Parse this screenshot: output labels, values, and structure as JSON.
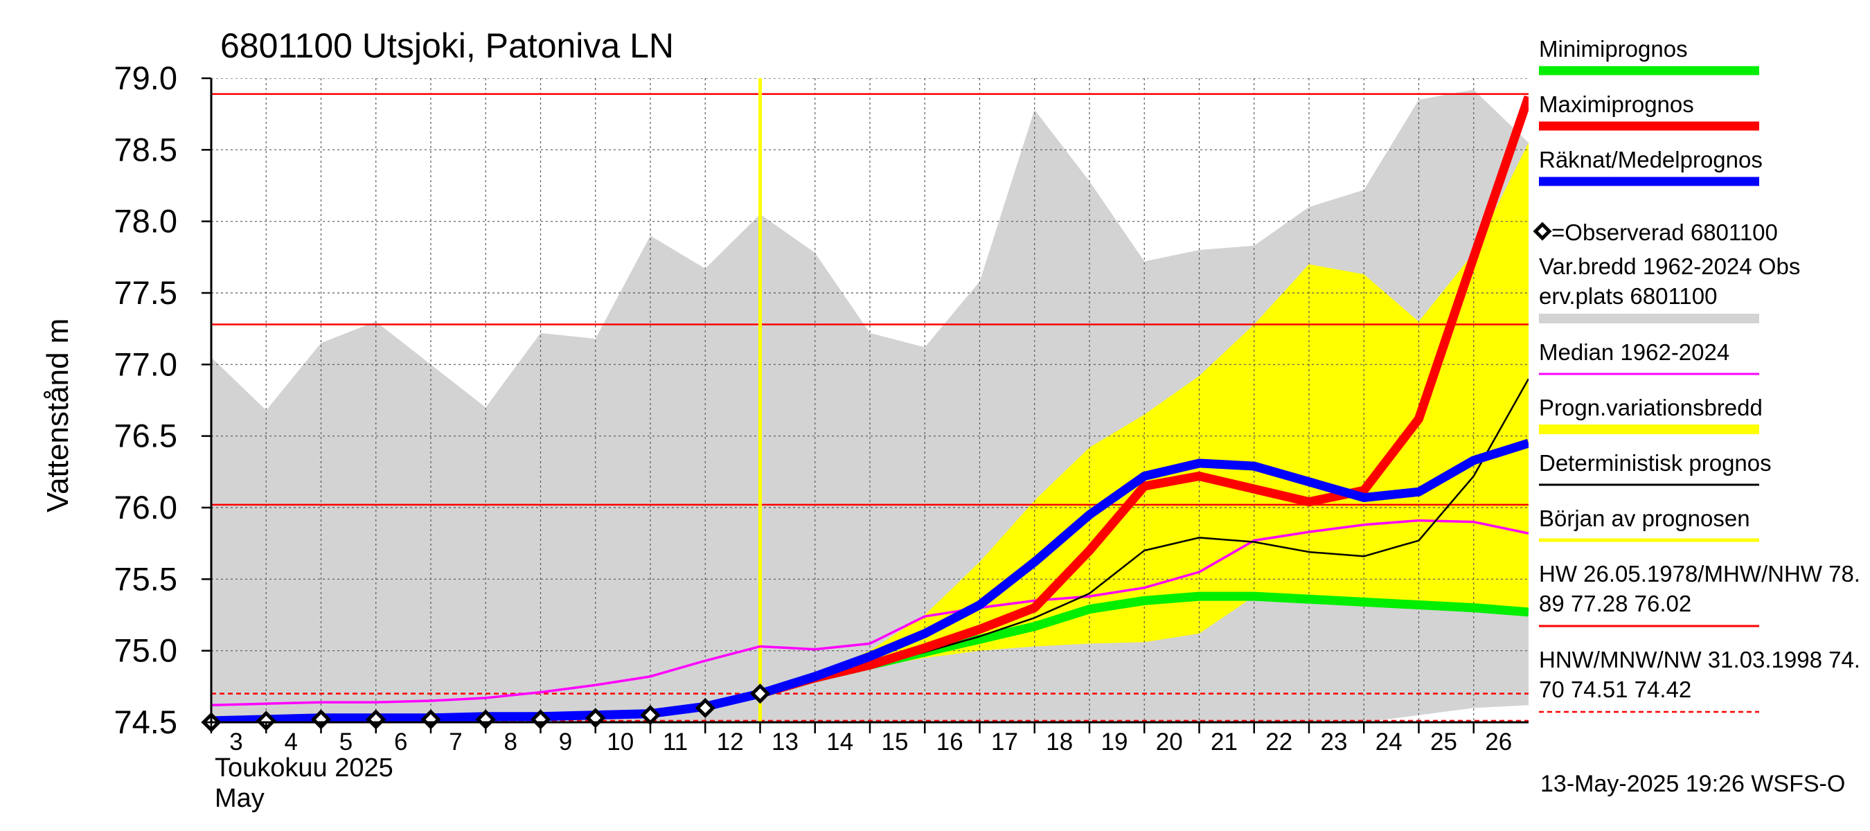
{
  "chart_data": {
    "type": "line",
    "title": "6801100 Utsjoki, Patoniva LN",
    "ylabel": "Vattenstånd m",
    "xlabel_lines": [
      "Toukokuu  2025",
      "May"
    ],
    "ylim": [
      74.5,
      79.0
    ],
    "xlim": [
      3,
      27
    ],
    "yticks": [
      74.5,
      75.0,
      75.5,
      76.0,
      76.5,
      77.0,
      77.5,
      78.0,
      78.5,
      79.0
    ],
    "ytick_labels": [
      "74.5",
      "75.0",
      "75.5",
      "76.0",
      "76.5",
      "77.0",
      "77.5",
      "78.0",
      "78.5",
      "79.0"
    ],
    "xticks": [
      3,
      4,
      5,
      6,
      7,
      8,
      9,
      10,
      11,
      12,
      13,
      14,
      15,
      16,
      17,
      18,
      19,
      20,
      21,
      22,
      23,
      24,
      25,
      26
    ],
    "xtick_labels": [
      "3",
      "4",
      "5",
      "6",
      "7",
      "8",
      "9",
      "10",
      "11",
      "12",
      "13",
      "14",
      "15",
      "16",
      "17",
      "18",
      "19",
      "20",
      "21",
      "22",
      "23",
      "24",
      "25",
      "26"
    ],
    "grid": true,
    "legend_placement": "right",
    "forecast_start_x": 13,
    "reference_lines": [
      {
        "name": "HW",
        "y": 78.89,
        "style": "solid",
        "color": "#ff0000"
      },
      {
        "name": "MHW",
        "y": 77.28,
        "style": "solid",
        "color": "#ff0000"
      },
      {
        "name": "NHW",
        "y": 76.02,
        "style": "solid",
        "color": "#ff0000"
      },
      {
        "name": "HNW",
        "y": 74.7,
        "style": "dashed",
        "color": "#ff0000"
      },
      {
        "name": "MNW",
        "y": 74.51,
        "style": "dashed",
        "color": "#ff0000"
      },
      {
        "name": "NW",
        "y": 74.42,
        "style": "dashed",
        "color": "#ff0000"
      }
    ],
    "variation_band": {
      "x": [
        3,
        4,
        5,
        6,
        7,
        8,
        9,
        10,
        11,
        12,
        13,
        14,
        15,
        16,
        17,
        18,
        19,
        20,
        21,
        22,
        23,
        24,
        25,
        26,
        27
      ],
      "upper": [
        77.05,
        76.68,
        77.15,
        77.3,
        77.0,
        76.7,
        77.22,
        77.18,
        77.9,
        77.67,
        78.05,
        77.78,
        77.22,
        77.12,
        77.58,
        78.78,
        78.28,
        77.72,
        77.8,
        77.83,
        78.1,
        78.22,
        78.85,
        78.92,
        78.55
      ],
      "lower": [
        74.5,
        74.5,
        74.5,
        74.5,
        74.5,
        74.5,
        74.5,
        74.5,
        74.5,
        74.5,
        74.5,
        74.5,
        74.5,
        74.5,
        74.5,
        74.45,
        74.47,
        74.5,
        74.5,
        74.5,
        74.5,
        74.5,
        74.55,
        74.6,
        74.62
      ],
      "color": "#d3d3d3"
    },
    "forecast_band": {
      "x": [
        13,
        14,
        15,
        16,
        17,
        18,
        19,
        20,
        21,
        22,
        23,
        24,
        25,
        26,
        27
      ],
      "upper": [
        74.7,
        74.83,
        75.0,
        75.25,
        75.62,
        76.05,
        76.42,
        76.65,
        76.92,
        77.28,
        77.7,
        77.63,
        77.3,
        77.78,
        78.55
      ],
      "lower": [
        74.7,
        74.82,
        74.88,
        74.95,
        75.0,
        75.03,
        75.05,
        75.06,
        75.12,
        75.38,
        75.38,
        75.33,
        75.32,
        75.3,
        75.3
      ],
      "color": "#ffff00"
    },
    "series": [
      {
        "name": "Minimiprognos",
        "color": "#00ee00",
        "x": [
          13,
          14,
          15,
          16,
          17,
          18,
          19,
          20,
          21,
          22,
          23,
          24,
          25,
          26,
          27
        ],
        "values": [
          74.7,
          74.81,
          74.9,
          74.99,
          75.08,
          75.17,
          75.29,
          75.35,
          75.38,
          75.38,
          75.36,
          75.34,
          75.32,
          75.3,
          75.27
        ]
      },
      {
        "name": "Maximiprognos",
        "color": "#ff0000",
        "x": [
          13,
          14,
          15,
          16,
          17,
          18,
          19,
          20,
          21,
          22,
          23,
          24,
          25,
          26,
          27
        ],
        "values": [
          74.7,
          74.81,
          74.9,
          75.02,
          75.15,
          75.3,
          75.7,
          76.15,
          76.22,
          76.13,
          76.04,
          76.12,
          76.62,
          77.75,
          78.87
        ]
      },
      {
        "name": "Räknat/Medelprognos",
        "color": "#0000ff",
        "x": [
          3,
          4,
          5,
          6,
          7,
          8,
          9,
          10,
          11,
          12,
          13,
          14,
          15,
          16,
          17,
          18,
          19,
          20,
          21,
          22,
          23,
          24,
          25,
          26,
          27
        ],
        "values": [
          74.51,
          74.52,
          74.53,
          74.53,
          74.53,
          74.54,
          74.54,
          74.55,
          74.56,
          74.61,
          74.7,
          74.82,
          74.96,
          75.12,
          75.32,
          75.62,
          75.95,
          76.22,
          76.31,
          76.29,
          76.18,
          76.07,
          76.11,
          76.33,
          76.45
        ]
      },
      {
        "name": "Median 1962-2024",
        "color": "#ff00ff",
        "x": [
          3,
          4,
          5,
          6,
          7,
          8,
          9,
          10,
          11,
          12,
          13,
          14,
          15,
          16,
          17,
          18,
          19,
          20,
          21,
          22,
          23,
          24,
          25,
          26,
          27
        ],
        "values": [
          74.62,
          74.63,
          74.64,
          74.64,
          74.65,
          74.67,
          74.71,
          74.76,
          74.82,
          74.93,
          75.03,
          75.01,
          75.05,
          75.24,
          75.3,
          75.35,
          75.38,
          75.44,
          75.55,
          75.77,
          75.83,
          75.88,
          75.91,
          75.9,
          75.82
        ]
      },
      {
        "name": "Deterministisk prognos",
        "color": "#000000",
        "x": [
          13,
          14,
          15,
          16,
          17,
          18,
          19,
          20,
          21,
          22,
          23,
          24,
          25,
          26,
          27
        ],
        "values": [
          74.7,
          74.81,
          74.9,
          74.99,
          75.1,
          75.23,
          75.4,
          75.7,
          75.79,
          75.76,
          75.69,
          75.66,
          75.77,
          76.22,
          76.9
        ]
      }
    ],
    "observed": {
      "name": "=Observerad 6801100",
      "x": [
        3,
        4,
        5,
        6,
        7,
        8,
        9,
        10,
        11,
        12,
        13
      ],
      "values": [
        74.5,
        74.51,
        74.52,
        74.52,
        74.52,
        74.52,
        74.52,
        74.53,
        74.55,
        74.6,
        74.7
      ]
    },
    "legend": [
      {
        "label": "Minimiprognos",
        "color": "#00ee00",
        "kind": "thick"
      },
      {
        "label": "Maximiprognos",
        "color": "#ff0000",
        "kind": "thick"
      },
      {
        "label": "Räknat/Medelprognos",
        "color": "#0000ff",
        "kind": "thick"
      },
      {
        "label": "=Observerad 6801100",
        "color": "#000000",
        "kind": "marker"
      },
      {
        "label": "Var.bredd 1962-2024   Obs",
        "label2": "erv.plats 6801100",
        "color": "#d3d3d3",
        "kind": "band"
      },
      {
        "label": "Median 1962-2024",
        "color": "#ff00ff",
        "kind": "thin"
      },
      {
        "label": "Progn.variationsbredd",
        "color": "#ffff00",
        "kind": "band"
      },
      {
        "label": "Deterministisk prognos",
        "color": "#000000",
        "kind": "thin"
      },
      {
        "label": "Början av prognosen",
        "color": "#ffff00",
        "kind": "medium"
      },
      {
        "label": "HW 26.05.1978/MHW/NHW 78.",
        "label2": "89 77.28 76.02",
        "color": "#ff0000",
        "kind": "thin"
      },
      {
        "label": "HNW/MNW/NW 31.03.1998 74.",
        "label2": "70 74.51 74.42",
        "color": "#ff0000",
        "kind": "dashed"
      }
    ],
    "footer": "13-May-2025 19:26 WSFS-O"
  }
}
